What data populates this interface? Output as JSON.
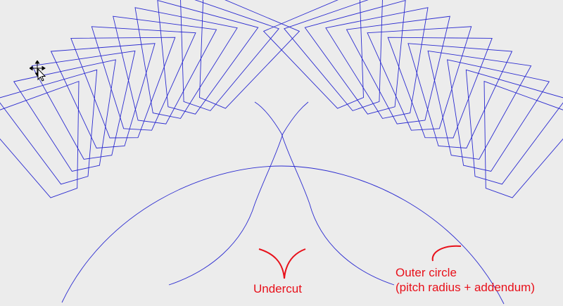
{
  "labels": {
    "undercut": "Undercut",
    "outer_circle_line1": "Outer circle",
    "outer_circle_line2": "(pitch radius + addendum)"
  },
  "icons": {
    "cursor": "move-cursor-icon"
  },
  "colors": {
    "background": "#ececec",
    "gear_lines": "#2b2bd0",
    "annotation": "#e8101a"
  }
}
